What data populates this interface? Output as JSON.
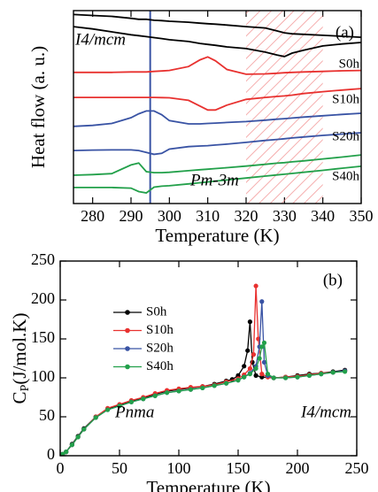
{
  "chart_data": [
    {
      "type": "line",
      "xlabel": "Temperature (K)",
      "ylabel": "Heat flow (a. u.)",
      "annotations": [
        "(a)",
        "I4/mcm",
        "Pm-3m"
      ],
      "xlim": [
        275,
        350
      ],
      "xticks": [
        280,
        290,
        300,
        310,
        320,
        330,
        340,
        350
      ],
      "ylim": [
        0,
        10
      ],
      "vline": 295,
      "vline_color": "#3953a4",
      "hatch_span": [
        320,
        340
      ],
      "hatch_color": "#f08080",
      "x": [
        275,
        280,
        285,
        290,
        292,
        294,
        296,
        298,
        300,
        305,
        308,
        310,
        312,
        315,
        320,
        325,
        328,
        330,
        332,
        335,
        340,
        345,
        350
      ],
      "series": [
        {
          "name": "S0h",
          "color": "#000000",
          "heating": [
            9.8,
            9.75,
            9.7,
            9.6,
            9.55,
            9.55,
            9.5,
            9.48,
            9.45,
            9.4,
            9.35,
            9.32,
            9.3,
            9.25,
            9.17,
            9.1,
            8.95,
            8.85,
            8.8,
            8.77,
            8.72,
            8.67,
            8.62
          ],
          "cooling": [
            9.17,
            9.05,
            8.9,
            8.75,
            8.7,
            8.65,
            8.6,
            8.55,
            8.49,
            8.4,
            8.3,
            8.25,
            8.2,
            8.12,
            8.03,
            7.85,
            7.7,
            7.62,
            7.8,
            7.95,
            8.17,
            8.27,
            8.35
          ]
        },
        {
          "name": "S10h",
          "color": "#e8312f",
          "heating": [
            6.8,
            6.8,
            6.8,
            6.82,
            6.82,
            6.82,
            6.85,
            6.87,
            6.9,
            7.1,
            7.45,
            7.6,
            7.4,
            6.95,
            6.7,
            6.72,
            6.75,
            6.78,
            6.8,
            6.82,
            6.85,
            6.88,
            6.9
          ],
          "cooling": [
            5.5,
            5.5,
            5.5,
            5.5,
            5.5,
            5.5,
            5.5,
            5.49,
            5.48,
            5.35,
            5.05,
            4.85,
            4.85,
            5.1,
            5.4,
            5.5,
            5.55,
            5.58,
            5.62,
            5.7,
            5.8,
            5.88,
            5.96
          ]
        },
        {
          "name": "S20h",
          "color": "#3953a4",
          "heating": [
            4.0,
            4.05,
            4.15,
            4.45,
            4.65,
            4.8,
            4.8,
            4.6,
            4.3,
            4.13,
            4.13,
            4.15,
            4.17,
            4.2,
            4.25,
            4.32,
            4.37,
            4.4,
            4.43,
            4.48,
            4.55,
            4.62,
            4.68
          ],
          "cooling": [
            2.75,
            2.77,
            2.78,
            2.78,
            2.75,
            2.65,
            2.55,
            2.6,
            2.82,
            2.95,
            2.98,
            3.0,
            3.03,
            3.08,
            3.17,
            3.27,
            3.32,
            3.36,
            3.4,
            3.45,
            3.53,
            3.6,
            3.67
          ]
        },
        {
          "name": "S40h",
          "color": "#22a04a",
          "heating": [
            1.47,
            1.5,
            1.55,
            2.0,
            2.1,
            1.65,
            1.6,
            1.6,
            1.62,
            1.7,
            1.75,
            1.78,
            1.81,
            1.86,
            1.94,
            2.03,
            2.09,
            2.12,
            2.16,
            2.21,
            2.31,
            2.41,
            2.52
          ],
          "cooling": [
            0.83,
            0.83,
            0.83,
            0.8,
            0.62,
            0.55,
            0.85,
            0.9,
            0.92,
            1.02,
            1.08,
            1.12,
            1.16,
            1.22,
            1.32,
            1.42,
            1.48,
            1.52,
            1.56,
            1.62,
            1.72,
            1.83,
            1.93
          ]
        }
      ]
    },
    {
      "type": "scatter-line",
      "xlabel": "Temperature (K)",
      "ylabel": {
        "main": "C",
        "sub": "P",
        "unit": "(J/mol.K)"
      },
      "annotations": [
        "(b)",
        "Pnma",
        "I4/mcm"
      ],
      "xlim": [
        0,
        250
      ],
      "xticks": [
        0,
        50,
        100,
        150,
        200,
        250
      ],
      "ylim": [
        0,
        250
      ],
      "yticks": [
        0,
        50,
        100,
        150,
        200,
        250
      ],
      "legend": "upper left",
      "series": [
        {
          "name": "S0h",
          "color": "#000000",
          "x": [
            2,
            5,
            10,
            15,
            20,
            30,
            40,
            50,
            60,
            70,
            80,
            90,
            100,
            110,
            120,
            130,
            140,
            145,
            150,
            155,
            158,
            160,
            162,
            165,
            170,
            180,
            190,
            200,
            210,
            220,
            230,
            240
          ],
          "values": [
            2,
            5,
            15,
            25,
            35,
            50,
            60,
            65,
            70,
            74,
            79,
            83,
            85,
            87,
            89,
            92,
            96,
            98,
            103,
            115,
            135,
            172,
            120,
            103,
            101,
            100,
            101,
            103,
            105,
            106,
            108,
            110
          ]
        },
        {
          "name": "S10h",
          "color": "#e8312f",
          "x": [
            2,
            5,
            10,
            15,
            20,
            30,
            40,
            50,
            60,
            70,
            80,
            90,
            100,
            110,
            120,
            130,
            140,
            150,
            155,
            160,
            163,
            165,
            167,
            170,
            175,
            180,
            190,
            200,
            210,
            220,
            230,
            240
          ],
          "values": [
            2,
            5,
            14,
            24,
            34,
            50,
            61,
            66,
            71,
            75,
            80,
            84,
            86,
            88,
            89,
            91,
            95,
            99,
            104,
            112,
            130,
            218,
            150,
            105,
            101,
            100,
            101,
            102,
            104,
            106,
            107,
            109
          ]
        },
        {
          "name": "S20h",
          "color": "#3953a4",
          "x": [
            2,
            5,
            10,
            15,
            20,
            30,
            40,
            50,
            60,
            70,
            80,
            90,
            100,
            110,
            120,
            130,
            140,
            150,
            155,
            160,
            165,
            168,
            170,
            172,
            175,
            180,
            190,
            200,
            210,
            220,
            230,
            240
          ],
          "values": [
            2,
            5,
            14,
            24,
            34,
            49,
            59,
            64,
            69,
            73,
            77,
            81,
            83,
            85,
            87,
            90,
            93,
            97,
            101,
            106,
            115,
            140,
            198,
            120,
            103,
            100,
            100,
            101,
            103,
            105,
            107,
            109
          ]
        },
        {
          "name": "S40h",
          "color": "#22a04a",
          "x": [
            2,
            5,
            10,
            15,
            20,
            30,
            40,
            50,
            60,
            70,
            80,
            90,
            100,
            110,
            120,
            130,
            140,
            150,
            155,
            160,
            165,
            168,
            170,
            172,
            175,
            180,
            190,
            200,
            210,
            220,
            230,
            240
          ],
          "values": [
            2,
            5,
            14,
            24,
            34,
            49,
            59,
            64,
            69,
            73,
            77,
            81,
            83,
            85,
            87,
            90,
            93,
            97,
            101,
            105,
            112,
            125,
            140,
            145,
            105,
            100,
            100,
            101,
            103,
            105,
            107,
            108
          ]
        }
      ]
    }
  ]
}
